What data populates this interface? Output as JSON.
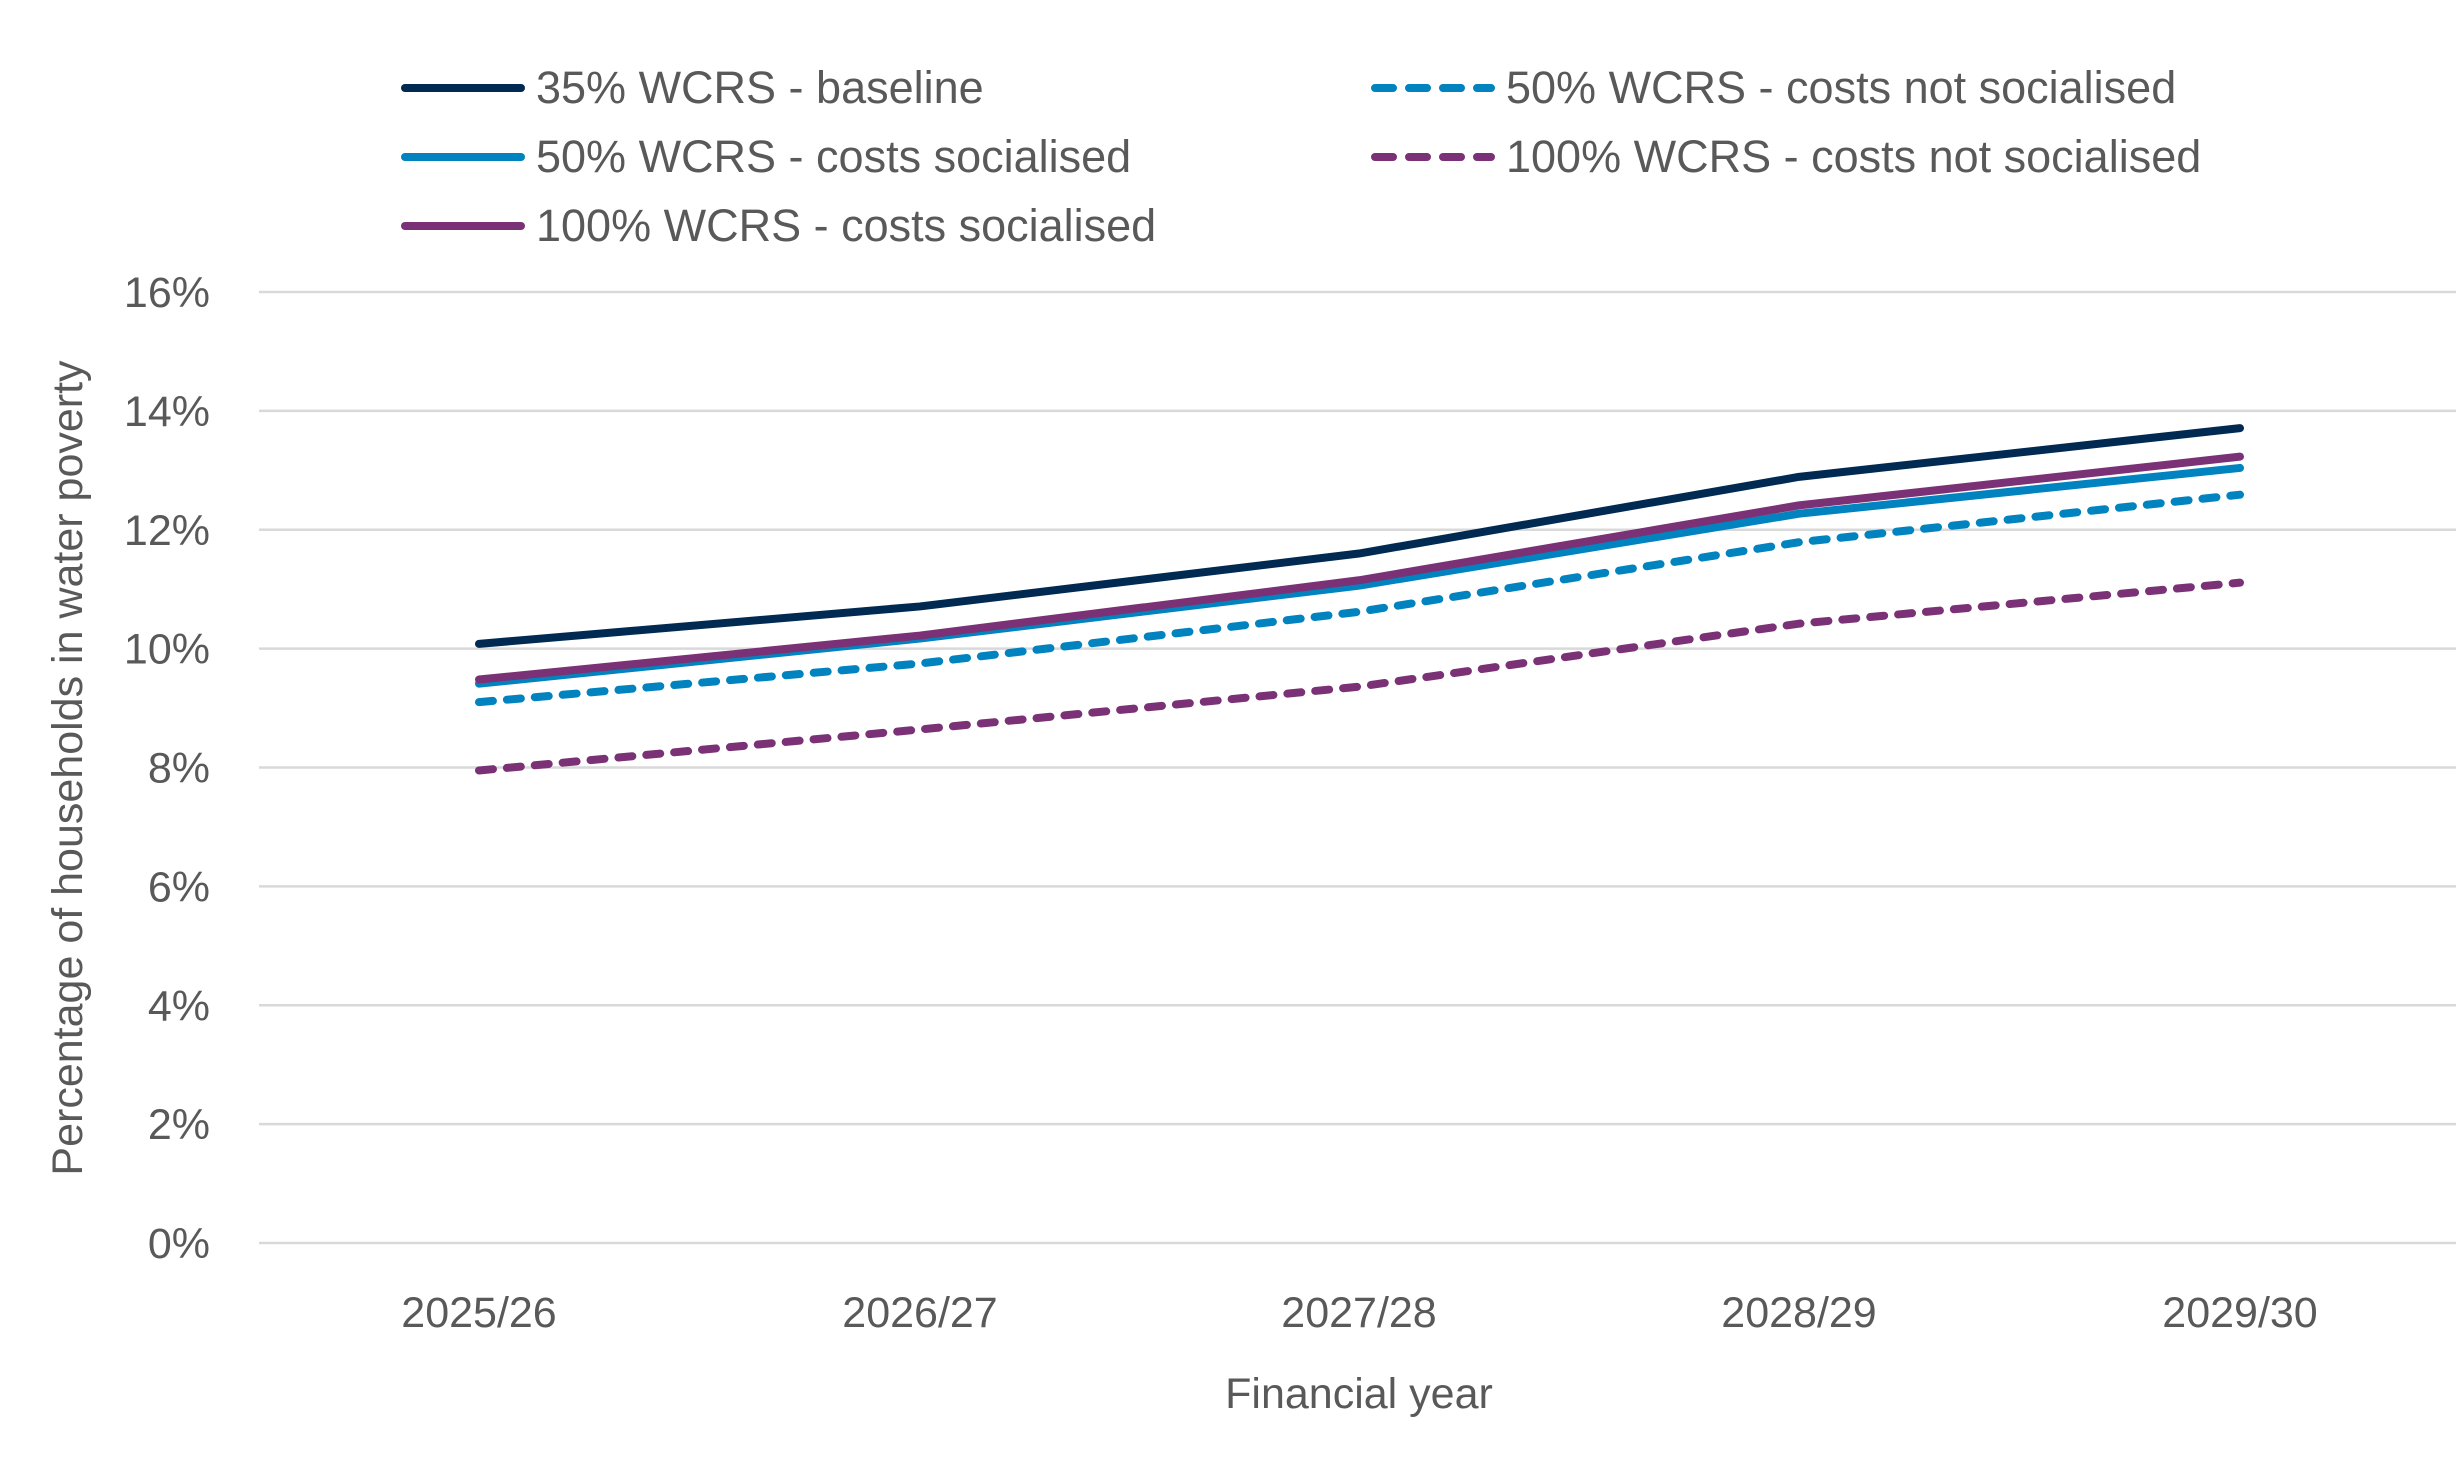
{
  "chart_data": {
    "type": "line",
    "title": "",
    "xlabel": "Financial year",
    "ylabel": "Percentage of households in water poverty",
    "categories": [
      "2025/26",
      "2026/27",
      "2027/28",
      "2028/29",
      "2029/30"
    ],
    "ylim": [
      0,
      16
    ],
    "yticks": [
      "0%",
      "2%",
      "4%",
      "6%",
      "8%",
      "10%",
      "12%",
      "14%",
      "16%"
    ],
    "grid": true,
    "legend_position": "top",
    "series": [
      {
        "name": "35% WCRS - baseline",
        "values": [
          10.08,
          10.71,
          11.6,
          12.89,
          13.71
        ],
        "color": "#002A52",
        "dash": false
      },
      {
        "name": "50% WCRS - costs not socialised",
        "values": [
          9.1,
          9.75,
          10.62,
          11.79,
          12.59
        ],
        "color": "#0083BF",
        "dash": true
      },
      {
        "name": "50% WCRS - costs socialised",
        "values": [
          9.41,
          10.17,
          11.06,
          12.27,
          13.04
        ],
        "color": "#0083BF",
        "dash": false
      },
      {
        "name": "100% WCRS - costs not socialised",
        "values": [
          7.95,
          8.64,
          9.36,
          10.42,
          11.11
        ],
        "color": "#7B3175",
        "dash": true
      },
      {
        "name": "100% WCRS - costs socialised",
        "values": [
          9.48,
          10.22,
          11.15,
          12.41,
          13.23
        ],
        "color": "#7B3175",
        "dash": false
      }
    ]
  }
}
